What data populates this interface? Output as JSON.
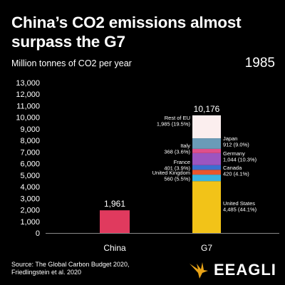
{
  "title": "China’s CO2 emissions almost surpass the G7",
  "subtitle": "Million tonnes of CO2 per year",
  "year": "1985",
  "source": "Source: The Global Carbon Budget 2020, Friedlingstein et al. 2020",
  "brand": {
    "name": "EEAGLI",
    "color": "#e8a317"
  },
  "chart_data": {
    "type": "bar",
    "ylim": [
      0,
      13000
    ],
    "yticks": [
      "0",
      "1,000",
      "2,000",
      "3,000",
      "4,000",
      "5,000",
      "6,000",
      "7,000",
      "8,000",
      "9,000",
      "10,000",
      "11,000",
      "12,000",
      "13,000"
    ],
    "categories": [
      "China",
      "G7"
    ],
    "bars": [
      {
        "category": "China",
        "value": 1961,
        "label": "1,961",
        "color": "#e03a5e",
        "stack": []
      },
      {
        "category": "G7",
        "value": 10176,
        "label": "10,176",
        "stack": [
          {
            "name": "United States",
            "value": 4485,
            "label": "4,485 (44.1%)",
            "color": "#f2c318"
          },
          {
            "name": "United Kingdom",
            "value": 560,
            "label": "560 (5.5%)",
            "color": "#3ab3e0"
          },
          {
            "name": "Canada",
            "value": 420,
            "label": "420 (4.1%)",
            "color": "#e8562e"
          },
          {
            "name": "France",
            "value": 401,
            "label": "401 (3.9%)",
            "color": "#3b6fd0"
          },
          {
            "name": "Germany",
            "value": 1044,
            "label": "1,044 (10.3%)",
            "color": "#9c55c0"
          },
          {
            "name": "Italy",
            "value": 368,
            "label": "368 (3.6%)",
            "color": "#e04f8a"
          },
          {
            "name": "Japan",
            "value": 912,
            "label": "912 (9.0%)",
            "color": "#6a9bb8"
          },
          {
            "name": "Rest of EU",
            "value": 1985,
            "label": "1,985 (19.5%)",
            "color": "#fbeeee"
          }
        ]
      }
    ]
  }
}
